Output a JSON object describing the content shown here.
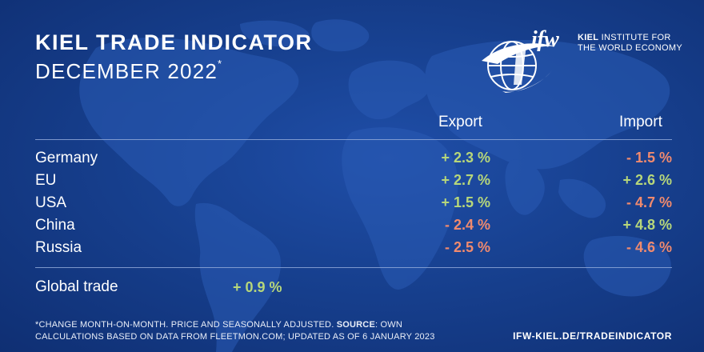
{
  "header": {
    "title": "KIEL TRADE INDICATOR",
    "subtitle": "DECEMBER 2022",
    "subtitle_mark": "*"
  },
  "logo": {
    "mark_icon": "ifw-globe-icon",
    "wordmark": "ifw",
    "name_bold": "KIEL",
    "name_rest": "INSTITUTE FOR",
    "name_line2": "THE WORLD ECONOMY"
  },
  "table": {
    "columns": {
      "export": "Export",
      "import": "Import"
    },
    "rows": [
      {
        "country": "Germany",
        "export": "+ 2.3 %",
        "import": "- 1.5 %"
      },
      {
        "country": "EU",
        "export": "+ 2.7 %",
        "import": "+ 2.6 %"
      },
      {
        "country": "USA",
        "export": "+ 1.5 %",
        "import": "- 4.7 %"
      },
      {
        "country": "China",
        "export": "- 2.4 %",
        "import": "+ 4.8 %"
      },
      {
        "country": "Russia",
        "export": "- 2.5 %",
        "import": "- 4.6 %"
      }
    ],
    "global": {
      "label": "Global trade",
      "value": "+ 0.9 %"
    }
  },
  "colors": {
    "positive": "#b7d77a",
    "negative": "#f08a6e",
    "background": "#17408f"
  },
  "footnote": {
    "line1_pre": "*CHANGE MONTH-ON-MONTH. PRICE AND SEASONALLY ADJUSTED.",
    "source_label": "SOURCE",
    "line1_post": ": OWN",
    "line2": "CALCULATIONS BASED ON DATA FROM FLEETMON.COM; UPDATED AS OF 6 JANUARY 2023"
  },
  "url": "IFW-KIEL.DE/TRADEINDICATOR"
}
